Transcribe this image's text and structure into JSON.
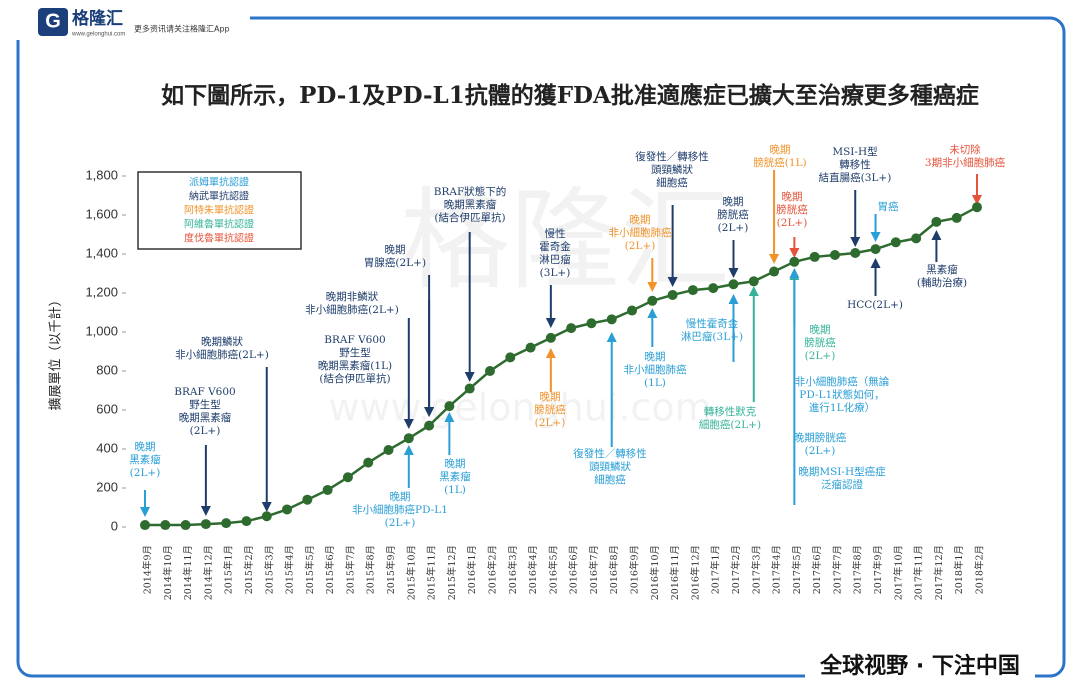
{
  "header": {
    "logo": "格隆汇",
    "url": "www.gelonghui.com",
    "tagline": "更多资讯请关注格隆汇App"
  },
  "footer": "全球视野 · 下注中国",
  "watermark": [
    "格隆汇",
    "www.gelonghui.com"
  ],
  "chart_data": {
    "type": "line",
    "title": "如下圖所示，PD-1及PD-L1抗體的獲FDA批准適應症已擴大至治療更多種癌症",
    "y_label": "擴展單位（以千計）",
    "categories": [
      "2014年9月",
      "2014年10月",
      "2014年11月",
      "2014年12月",
      "2015年1月",
      "2015年2月",
      "2015年3月",
      "2015年4月",
      "2015年5月",
      "2015年6月",
      "2015年7月",
      "2015年8月",
      "2015年9月",
      "2015年10月",
      "2015年11月",
      "2015年12月",
      "2016年1月",
      "2016年2月",
      "2016年3月",
      "2016年4月",
      "2016年5月",
      "2016年6月",
      "2016年7月",
      "2016年8月",
      "2016年9月",
      "2016年10月",
      "2016年11月",
      "2016年12月",
      "2017年1月",
      "2017年2月",
      "2017年3月",
      "2017年4月",
      "2017年5月",
      "2017年6月",
      "2017年7月",
      "2017年8月",
      "2017年9月",
      "2017年10月",
      "2017年11月",
      "2017年12月",
      "2018年1月",
      "2018年2月"
    ],
    "values": [
      10,
      10,
      10,
      15,
      20,
      30,
      55,
      90,
      140,
      190,
      255,
      330,
      395,
      455,
      520,
      620,
      710,
      800,
      870,
      920,
      970,
      1020,
      1045,
      1065,
      1110,
      1160,
      1190,
      1215,
      1225,
      1245,
      1260,
      1310,
      1360,
      1385,
      1395,
      1405,
      1425,
      1460,
      1480,
      1565,
      1585,
      1640
    ],
    "color": "#2e6b2e",
    "ylim": [
      0,
      1800
    ],
    "yticks": [
      0,
      200,
      400,
      600,
      800,
      {
        "value": 1000,
        "label": "1,000"
      },
      {
        "value": 1200,
        "label": "1,200"
      },
      {
        "value": 1400,
        "label": "1,400"
      },
      {
        "value": 1600,
        "label": "1,600"
      },
      {
        "value": 1800,
        "label": "1,800"
      }
    ],
    "legend": [
      {
        "name": "派姆單抗認證",
        "color": "#2a9fd6"
      },
      {
        "name": "納武單抗認證",
        "color": "#1f3d6b"
      },
      {
        "name": "阿特朱單抗認證",
        "color": "#f0932b"
      },
      {
        "name": "阿維魯單抗認證",
        "color": "#35b39a"
      },
      {
        "name": "度伐魯單抗認證",
        "color": "#e5533a"
      }
    ],
    "annotations": [
      {
        "text": [
          "晚期",
          "黑素瘤",
          "(2L+)"
        ],
        "color": "#2a9fd6"
      },
      {
        "text": [
          "BRAF V600",
          "野生型",
          "晚期黑素瘤",
          "(2L+)"
        ],
        "color": "#1f3d6b"
      },
      {
        "text": [
          "晚期鱗狀",
          "非小細胞肺癌(2L+)"
        ],
        "color": "#1f3d6b"
      },
      {
        "text": [
          "晚期",
          "非小細胞肺癌PD-L1",
          "(2L+)"
        ],
        "color": "#2a9fd6"
      },
      {
        "text": [
          "晚期非鱗狀",
          "非小細胞肺癌(2L+)"
        ],
        "color": "#1f3d6b"
      },
      {
        "text": [
          "BRAF V600",
          "野生型",
          "晚期黑素瘤(1L)",
          "(結合伊匹單抗)"
        ],
        "color": "#1f3d6b"
      },
      {
        "text": [
          "晚期",
          "胃腺癌(2L+)"
        ],
        "color": "#1f3d6b"
      },
      {
        "text": [
          "BRAF狀態下的",
          "晚期黑素瘤",
          "(結合伊匹單抗)"
        ],
        "color": "#1f3d6b"
      },
      {
        "text": [
          "晚期",
          "黑素瘤",
          "(1L)"
        ],
        "color": "#2a9fd6"
      },
      {
        "text": [
          "慢性",
          "霍奇金",
          "淋巴瘤",
          "(3L+)"
        ],
        "color": "#1f3d6b"
      },
      {
        "text": [
          "晚期",
          "膀胱癌",
          "(2L+)"
        ],
        "color": "#f0932b"
      },
      {
        "text": [
          "復發性／轉移性",
          "頭頸鱗狀",
          "細胞癌"
        ],
        "color": "#2a9fd6"
      },
      {
        "text": [
          "晚期",
          "非小細胞肺癌",
          "(1L)"
        ],
        "color": "#2a9fd6"
      },
      {
        "text": [
          "晚期",
          "非小細胞肺癌",
          "(2L+)"
        ],
        "color": "#f0932b"
      },
      {
        "text": [
          "復發性／轉移性",
          "頭頸鱗狀",
          "細胞癌"
        ],
        "color": "#1f3d6b"
      },
      {
        "text": [
          "慢性霍奇金",
          "淋巴瘤(3L+)"
        ],
        "color": "#2a9fd6"
      },
      {
        "text": [
          "晚期",
          "膀胱癌",
          "(2L+)"
        ],
        "color": "#1f3d6b"
      },
      {
        "text": [
          "晚期",
          "膀胱癌(1L)"
        ],
        "color": "#f0932b"
      },
      {
        "text": [
          "晚期",
          "膀胱癌",
          "(2L+)"
        ],
        "color": "#e5533a"
      },
      {
        "text": [
          "轉移性默克",
          "細胞癌(2L+)"
        ],
        "color": "#35b39a"
      },
      {
        "text": [
          "晚期",
          "膀胱癌",
          "(2L+)"
        ],
        "color": "#35b39a"
      },
      {
        "text": [
          "非小細胞肺癌（無論",
          "PD-L1狀態如何，",
          "進行1L化療）"
        ],
        "color": "#2a9fd6"
      },
      {
        "text": [
          "晚期膀胱癌",
          "(2L+)"
        ],
        "color": "#2a9fd6"
      },
      {
        "text": [
          "晚期MSI-H型癌症",
          "泛瘤認證"
        ],
        "color": "#2a9fd6"
      },
      {
        "text": [
          "MSI-H型",
          "轉移性",
          "結直腸癌(3L+)"
        ],
        "color": "#1f3d6b"
      },
      {
        "text": [
          "胃癌"
        ],
        "color": "#2a9fd6"
      },
      {
        "text": [
          "HCC(2L+)"
        ],
        "color": "#1f3d6b"
      },
      {
        "text": [
          "黑素瘤",
          "(輔助治療)"
        ],
        "color": "#1f3d6b"
      },
      {
        "text": [
          "未切除",
          "3期非小細胞肺癌"
        ],
        "color": "#e5533a"
      }
    ]
  }
}
